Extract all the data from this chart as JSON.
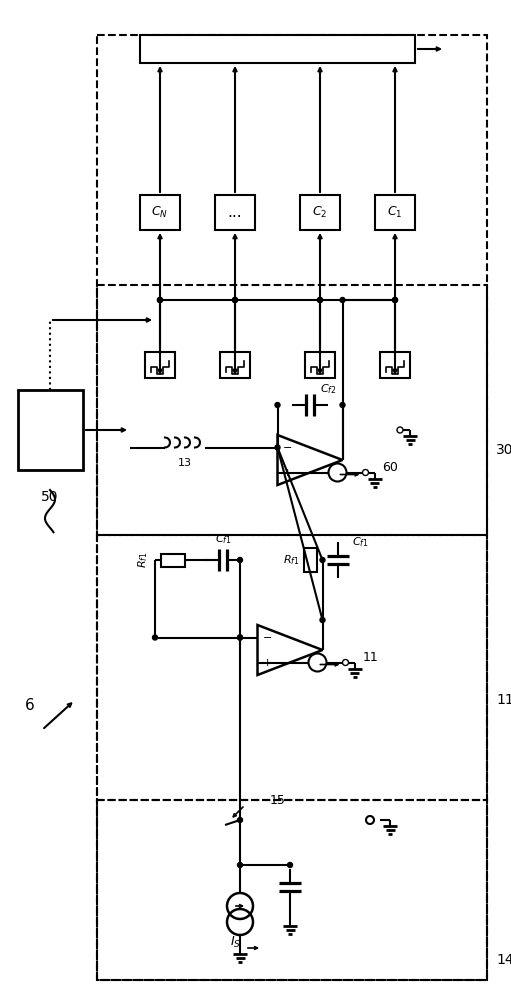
{
  "bg_color": "#ffffff",
  "lw": 1.5,
  "fig_w": 5.11,
  "fig_h": 10.0
}
